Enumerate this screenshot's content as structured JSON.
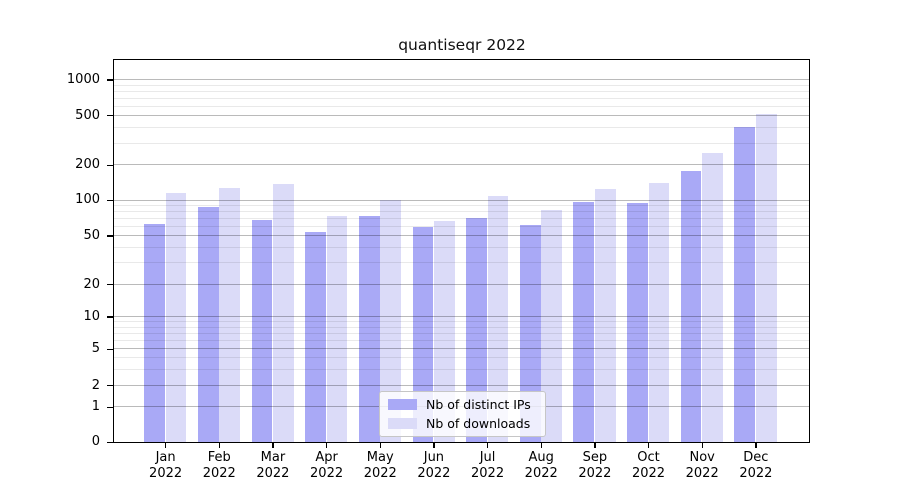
{
  "figure": {
    "title": "quantiseqr 2022"
  },
  "chart_data": {
    "type": "bar",
    "title": "quantiseqr 2022",
    "xlabel": "",
    "ylabel": "",
    "categories": [
      "Jan",
      "Feb",
      "Mar",
      "Apr",
      "May",
      "Jun",
      "Jul",
      "Aug",
      "Sep",
      "Oct",
      "Nov",
      "Dec"
    ],
    "year_label": "2022",
    "series": [
      {
        "name": "Nb of distinct IPs",
        "color": "#a9a9f6",
        "values": [
          63,
          87,
          68,
          54,
          74,
          59,
          70,
          61,
          97,
          95,
          178,
          405
        ]
      },
      {
        "name": "Nb of downloads",
        "color": "#dbdbf8",
        "values": [
          115,
          127,
          137,
          73,
          100,
          66,
          108,
          82,
          124,
          141,
          250,
          512
        ]
      }
    ],
    "y_axis": {
      "scale": "symlog",
      "ticks": [
        0,
        1,
        2,
        5,
        10,
        20,
        50,
        100,
        200,
        500,
        1000
      ]
    },
    "grid": true,
    "legend": {
      "position": "lower-center-inside"
    }
  }
}
